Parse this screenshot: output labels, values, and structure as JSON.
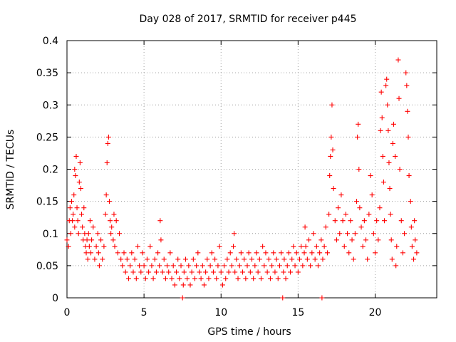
{
  "chart_data": {
    "type": "scatter",
    "title": "Day 028 of 2017, SRMTID for receiver p445",
    "xlabel": "GPS time / hours",
    "ylabel": "SRMTID / TECUs",
    "xlim": [
      0,
      24
    ],
    "ylim": [
      0,
      0.4
    ],
    "x_ticks": [
      0,
      5,
      10,
      15,
      20
    ],
    "x_tick_labels": [
      "0",
      "5",
      "10",
      "15",
      "20"
    ],
    "y_ticks": [
      0,
      0.05,
      0.1,
      0.15,
      0.2,
      0.25,
      0.3,
      0.35,
      0.4
    ],
    "y_tick_labels": [
      "0",
      "0.05",
      "0.1",
      "0.15",
      "0.2",
      "0.25",
      "0.3",
      "0.35",
      "0.4"
    ],
    "grid": true,
    "marker": "+",
    "color": "#ff0000",
    "series": [
      {
        "name": "SRMTID",
        "points": [
          [
            0.0,
            0.09
          ],
          [
            0.1,
            0.08
          ],
          [
            0.15,
            0.12
          ],
          [
            0.2,
            0.14
          ],
          [
            0.25,
            0.1
          ],
          [
            0.3,
            0.15
          ],
          [
            0.35,
            0.12
          ],
          [
            0.4,
            0.13
          ],
          [
            0.45,
            0.16
          ],
          [
            0.5,
            0.11
          ],
          [
            0.5,
            0.2
          ],
          [
            0.55,
            0.19
          ],
          [
            0.6,
            0.22
          ],
          [
            0.65,
            0.14
          ],
          [
            0.7,
            0.12
          ],
          [
            0.75,
            0.1
          ],
          [
            0.8,
            0.18
          ],
          [
            0.85,
            0.21
          ],
          [
            0.9,
            0.17
          ],
          [
            0.95,
            0.13
          ],
          [
            1.0,
            0.11
          ],
          [
            1.05,
            0.09
          ],
          [
            1.1,
            0.14
          ],
          [
            1.15,
            0.1
          ],
          [
            1.2,
            0.08
          ],
          [
            1.25,
            0.07
          ],
          [
            1.3,
            0.09
          ],
          [
            1.35,
            0.06
          ],
          [
            1.4,
            0.1
          ],
          [
            1.45,
            0.08
          ],
          [
            1.5,
            0.12
          ],
          [
            1.55,
            0.07
          ],
          [
            1.6,
            0.09
          ],
          [
            1.7,
            0.11
          ],
          [
            1.8,
            0.06
          ],
          [
            1.9,
            0.08
          ],
          [
            2.0,
            0.1
          ],
          [
            2.05,
            0.07
          ],
          [
            2.1,
            0.05
          ],
          [
            2.2,
            0.09
          ],
          [
            2.3,
            0.06
          ],
          [
            2.4,
            0.08
          ],
          [
            2.5,
            0.13
          ],
          [
            2.55,
            0.16
          ],
          [
            2.6,
            0.21
          ],
          [
            2.65,
            0.24
          ],
          [
            2.7,
            0.25
          ],
          [
            2.75,
            0.15
          ],
          [
            2.8,
            0.12
          ],
          [
            2.85,
            0.1
          ],
          [
            2.9,
            0.11
          ],
          [
            3.0,
            0.09
          ],
          [
            3.05,
            0.13
          ],
          [
            3.1,
            0.08
          ],
          [
            3.2,
            0.12
          ],
          [
            3.3,
            0.07
          ],
          [
            3.4,
            0.1
          ],
          [
            3.5,
            0.06
          ],
          [
            3.6,
            0.05
          ],
          [
            3.7,
            0.07
          ],
          [
            3.8,
            0.04
          ],
          [
            3.9,
            0.06
          ],
          [
            4.0,
            0.03
          ],
          [
            4.1,
            0.05
          ],
          [
            4.2,
            0.07
          ],
          [
            4.3,
            0.04
          ],
          [
            4.4,
            0.06
          ],
          [
            4.5,
            0.03
          ],
          [
            4.6,
            0.08
          ],
          [
            4.7,
            0.05
          ],
          [
            4.8,
            0.04
          ],
          [
            4.9,
            0.07
          ],
          [
            5.0,
            0.05
          ],
          [
            5.1,
            0.03
          ],
          [
            5.2,
            0.06
          ],
          [
            5.3,
            0.04
          ],
          [
            5.4,
            0.08
          ],
          [
            5.5,
            0.05
          ],
          [
            5.6,
            0.03
          ],
          [
            5.7,
            0.06
          ],
          [
            5.8,
            0.04
          ],
          [
            5.9,
            0.07
          ],
          [
            6.0,
            0.05
          ],
          [
            6.05,
            0.12
          ],
          [
            6.1,
            0.09
          ],
          [
            6.2,
            0.04
          ],
          [
            6.3,
            0.06
          ],
          [
            6.4,
            0.03
          ],
          [
            6.5,
            0.05
          ],
          [
            6.6,
            0.04
          ],
          [
            6.7,
            0.07
          ],
          [
            6.8,
            0.03
          ],
          [
            6.9,
            0.05
          ],
          [
            7.0,
            0.02
          ],
          [
            7.1,
            0.04
          ],
          [
            7.2,
            0.06
          ],
          [
            7.3,
            0.03
          ],
          [
            7.4,
            0.05
          ],
          [
            7.5,
            0.0
          ],
          [
            7.55,
            0.02
          ],
          [
            7.6,
            0.04
          ],
          [
            7.7,
            0.06
          ],
          [
            7.8,
            0.03
          ],
          [
            7.9,
            0.05
          ],
          [
            8.0,
            0.02
          ],
          [
            8.1,
            0.04
          ],
          [
            8.2,
            0.06
          ],
          [
            8.3,
            0.03
          ],
          [
            8.4,
            0.05
          ],
          [
            8.5,
            0.07
          ],
          [
            8.6,
            0.04
          ],
          [
            8.7,
            0.03
          ],
          [
            8.8,
            0.05
          ],
          [
            8.9,
            0.02
          ],
          [
            9.0,
            0.04
          ],
          [
            9.1,
            0.06
          ],
          [
            9.2,
            0.03
          ],
          [
            9.3,
            0.05
          ],
          [
            9.4,
            0.07
          ],
          [
            9.5,
            0.04
          ],
          [
            9.6,
            0.06
          ],
          [
            9.7,
            0.03
          ],
          [
            9.8,
            0.05
          ],
          [
            9.9,
            0.08
          ],
          [
            10.0,
            0.04
          ],
          [
            10.1,
            0.02
          ],
          [
            10.2,
            0.05
          ],
          [
            10.3,
            0.03
          ],
          [
            10.4,
            0.06
          ],
          [
            10.5,
            0.04
          ],
          [
            10.6,
            0.07
          ],
          [
            10.7,
            0.05
          ],
          [
            10.8,
            0.08
          ],
          [
            10.85,
            0.1
          ],
          [
            10.9,
            0.04
          ],
          [
            11.0,
            0.06
          ],
          [
            11.1,
            0.03
          ],
          [
            11.2,
            0.05
          ],
          [
            11.3,
            0.07
          ],
          [
            11.4,
            0.04
          ],
          [
            11.5,
            0.06
          ],
          [
            11.6,
            0.03
          ],
          [
            11.7,
            0.05
          ],
          [
            11.8,
            0.07
          ],
          [
            11.9,
            0.04
          ],
          [
            12.0,
            0.06
          ],
          [
            12.1,
            0.03
          ],
          [
            12.2,
            0.05
          ],
          [
            12.3,
            0.07
          ],
          [
            12.4,
            0.04
          ],
          [
            12.5,
            0.06
          ],
          [
            12.6,
            0.03
          ],
          [
            12.7,
            0.08
          ],
          [
            12.8,
            0.05
          ],
          [
            12.9,
            0.07
          ],
          [
            13.0,
            0.04
          ],
          [
            13.1,
            0.06
          ],
          [
            13.2,
            0.03
          ],
          [
            13.3,
            0.05
          ],
          [
            13.4,
            0.07
          ],
          [
            13.5,
            0.04
          ],
          [
            13.6,
            0.06
          ],
          [
            13.7,
            0.03
          ],
          [
            13.8,
            0.05
          ],
          [
            13.9,
            0.07
          ],
          [
            14.0,
            0.0
          ],
          [
            14.05,
            0.04
          ],
          [
            14.1,
            0.06
          ],
          [
            14.2,
            0.03
          ],
          [
            14.3,
            0.05
          ],
          [
            14.4,
            0.07
          ],
          [
            14.5,
            0.04
          ],
          [
            14.6,
            0.06
          ],
          [
            14.7,
            0.08
          ],
          [
            14.8,
            0.05
          ],
          [
            14.9,
            0.07
          ],
          [
            15.0,
            0.04
          ],
          [
            15.1,
            0.06
          ],
          [
            15.2,
            0.08
          ],
          [
            15.3,
            0.05
          ],
          [
            15.4,
            0.07
          ],
          [
            15.45,
            0.11
          ],
          [
            15.5,
            0.08
          ],
          [
            15.6,
            0.06
          ],
          [
            15.7,
            0.09
          ],
          [
            15.8,
            0.05
          ],
          [
            15.9,
            0.07
          ],
          [
            16.0,
            0.1
          ],
          [
            16.1,
            0.06
          ],
          [
            16.2,
            0.08
          ],
          [
            16.3,
            0.05
          ],
          [
            16.4,
            0.07
          ],
          [
            16.5,
            0.09
          ],
          [
            16.55,
            0.0
          ],
          [
            16.6,
            0.06
          ],
          [
            16.7,
            0.08
          ],
          [
            16.8,
            0.11
          ],
          [
            16.9,
            0.07
          ],
          [
            17.0,
            0.13
          ],
          [
            17.05,
            0.19
          ],
          [
            17.1,
            0.22
          ],
          [
            17.15,
            0.25
          ],
          [
            17.2,
            0.3
          ],
          [
            17.25,
            0.23
          ],
          [
            17.3,
            0.17
          ],
          [
            17.4,
            0.12
          ],
          [
            17.5,
            0.09
          ],
          [
            17.6,
            0.14
          ],
          [
            17.7,
            0.1
          ],
          [
            17.8,
            0.16
          ],
          [
            17.9,
            0.12
          ],
          [
            18.0,
            0.08
          ],
          [
            18.1,
            0.13
          ],
          [
            18.2,
            0.1
          ],
          [
            18.3,
            0.07
          ],
          [
            18.4,
            0.12
          ],
          [
            18.5,
            0.09
          ],
          [
            18.6,
            0.06
          ],
          [
            18.7,
            0.1
          ],
          [
            18.8,
            0.15
          ],
          [
            18.85,
            0.25
          ],
          [
            18.9,
            0.27
          ],
          [
            18.95,
            0.2
          ],
          [
            19.0,
            0.14
          ],
          [
            19.1,
            0.11
          ],
          [
            19.2,
            0.08
          ],
          [
            19.3,
            0.12
          ],
          [
            19.4,
            0.09
          ],
          [
            19.5,
            0.06
          ],
          [
            19.6,
            0.13
          ],
          [
            19.7,
            0.19
          ],
          [
            19.8,
            0.16
          ],
          [
            19.9,
            0.1
          ],
          [
            20.0,
            0.07
          ],
          [
            20.1,
            0.12
          ],
          [
            20.2,
            0.09
          ],
          [
            20.3,
            0.14
          ],
          [
            20.35,
            0.26
          ],
          [
            20.4,
            0.32
          ],
          [
            20.45,
            0.28
          ],
          [
            20.5,
            0.22
          ],
          [
            20.55,
            0.18
          ],
          [
            20.6,
            0.12
          ],
          [
            20.7,
            0.33
          ],
          [
            20.75,
            0.34
          ],
          [
            20.8,
            0.3
          ],
          [
            20.85,
            0.26
          ],
          [
            20.9,
            0.21
          ],
          [
            20.95,
            0.17
          ],
          [
            21.0,
            0.13
          ],
          [
            21.05,
            0.09
          ],
          [
            21.1,
            0.06
          ],
          [
            21.15,
            0.24
          ],
          [
            21.2,
            0.27
          ],
          [
            21.3,
            0.22
          ],
          [
            21.35,
            0.05
          ],
          [
            21.4,
            0.08
          ],
          [
            21.5,
            0.37
          ],
          [
            21.55,
            0.31
          ],
          [
            21.6,
            0.2
          ],
          [
            21.7,
            0.12
          ],
          [
            21.8,
            0.07
          ],
          [
            21.9,
            0.1
          ],
          [
            22.0,
            0.35
          ],
          [
            22.05,
            0.33
          ],
          [
            22.1,
            0.29
          ],
          [
            22.15,
            0.25
          ],
          [
            22.2,
            0.19
          ],
          [
            22.3,
            0.15
          ],
          [
            22.35,
            0.11
          ],
          [
            22.4,
            0.08
          ],
          [
            22.5,
            0.06
          ],
          [
            22.55,
            0.12
          ],
          [
            22.6,
            0.09
          ],
          [
            22.7,
            0.07
          ]
        ]
      }
    ]
  }
}
